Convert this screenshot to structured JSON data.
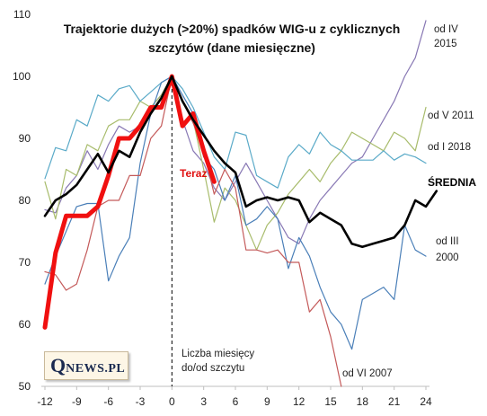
{
  "chart_data": {
    "type": "line",
    "title": [
      "Trajektorie dużych (>20%) spadków WIG-u z cyklicznych",
      "szczytów (dane miesięczne)"
    ],
    "ylim": [
      50,
      110
    ],
    "yticks": [
      50,
      60,
      70,
      80,
      90,
      100,
      110
    ],
    "xlim": [
      -12,
      24
    ],
    "xticks": [
      -12,
      -9,
      -6,
      -3,
      0,
      3,
      6,
      9,
      12,
      15,
      18,
      21,
      24
    ],
    "grid": false,
    "peak_marker_x": 0,
    "x_annotation": [
      "Liczba miesięcy",
      "do/od szczytu"
    ],
    "series": [
      {
        "name": "od IV 2015",
        "label_lines": [
          "od IV",
          "2015"
        ],
        "color": "#8878b4",
        "width": 1.2,
        "x_start": -12,
        "values": [
          78.5,
          78,
          82,
          84,
          88,
          85,
          89,
          92,
          91,
          92,
          95,
          97,
          100,
          93,
          88,
          86,
          82,
          80,
          83,
          86,
          83,
          80,
          77,
          74,
          73,
          77,
          80,
          82,
          84,
          86,
          87,
          90,
          93,
          96,
          100,
          103,
          109
        ]
      },
      {
        "name": "od V 2011",
        "label_lines": [
          "od V 2011"
        ],
        "color": "#a8bc6c",
        "width": 1.2,
        "x_start": -12,
        "values": [
          83,
          77,
          85,
          84,
          89,
          88,
          92,
          93,
          93,
          96,
          95,
          97,
          100,
          96,
          93,
          85,
          76.5,
          82,
          80,
          76,
          72,
          76,
          78,
          81,
          83,
          85,
          83,
          86,
          88,
          91,
          90,
          89,
          88,
          91,
          90,
          88,
          95
        ]
      },
      {
        "name": "od I 2018",
        "label_lines": [
          "od I 2018"
        ],
        "color": "#5aaac8",
        "width": 1.2,
        "x_start": -12,
        "values": [
          83.5,
          88.5,
          88,
          93,
          92,
          97,
          96,
          98,
          98.5,
          96,
          97.5,
          99,
          100,
          98,
          95,
          91,
          87,
          85,
          91,
          90.5,
          84,
          83,
          82,
          87,
          89,
          87.5,
          91,
          89,
          88,
          86.5,
          86.5,
          86.5,
          88,
          86.5,
          87.5,
          87,
          86
        ]
      },
      {
        "name": "od III 2000",
        "label_lines": [
          "od III",
          "2000"
        ],
        "color": "#4a7fb8",
        "width": 1.2,
        "x_start": -12,
        "values": [
          66.5,
          71,
          75,
          79,
          79.5,
          79.5,
          67,
          71,
          74,
          86,
          94,
          99,
          100,
          97,
          94,
          87,
          85,
          80,
          84,
          76,
          77,
          79,
          77,
          69,
          74,
          71,
          66,
          62,
          60,
          56,
          64,
          65,
          66,
          64,
          76,
          72,
          71
        ]
      },
      {
        "name": "od VI 2007",
        "label_lines": [
          "od VI 2007"
        ],
        "color": "#c45a5a",
        "width": 1.2,
        "x_start": -12,
        "values": [
          68.5,
          68,
          65.5,
          66.5,
          72,
          79,
          80,
          80,
          84,
          84,
          90,
          92,
          100,
          96,
          92.5,
          88,
          81,
          85,
          82,
          72,
          72,
          71.5,
          72,
          70,
          70,
          62,
          64,
          58,
          50
        ]
      },
      {
        "name": "Teraz",
        "label_lines": [
          "Teraz"
        ],
        "color": "#f01010",
        "width": 5,
        "x_start": -12,
        "values": [
          59.5,
          71.5,
          77.5,
          77.5,
          77.5,
          79,
          84,
          90,
          90,
          92,
          95,
          95,
          100,
          92,
          94,
          88,
          83
        ]
      },
      {
        "name": "ŚREDNIA",
        "label_lines": [
          "ŚREDNIA"
        ],
        "color": "#000000",
        "width": 2.6,
        "x_start": -12,
        "values": [
          77.5,
          80,
          81,
          82.5,
          85,
          87.5,
          84.5,
          88,
          87,
          91,
          94,
          96.5,
          100,
          96,
          93,
          90.5,
          88,
          86,
          84.5,
          79,
          80,
          80.5,
          80,
          80.5,
          80,
          76.5,
          78,
          77,
          76,
          73,
          72.5,
          73,
          73.5,
          74,
          76,
          80,
          79,
          81.5
        ]
      }
    ]
  },
  "logo": {
    "q": "Q",
    "rest": "NEWS.PL"
  }
}
